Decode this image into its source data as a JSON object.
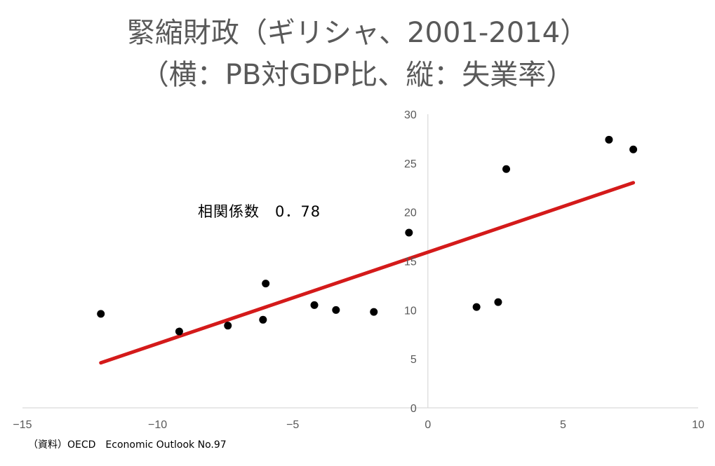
{
  "chart_data": {
    "type": "scatter",
    "title_line1": "緊縮財政（ギリシャ、2001-2014）",
    "title_line2": "（横：PB対GDP比、縦：失業率）",
    "xlabel": "",
    "ylabel": "",
    "xlim": [
      -15,
      10
    ],
    "ylim": [
      0,
      30
    ],
    "x_ticks": [
      -15,
      -10,
      -5,
      0,
      5,
      10
    ],
    "x_tick_labels": [
      "−15",
      "−10",
      "−5",
      "0",
      "5",
      "10"
    ],
    "y_ticks": [
      0,
      5,
      10,
      15,
      20,
      25,
      30
    ],
    "y_tick_labels": [
      "0",
      "5",
      "10",
      "15",
      "20",
      "25",
      "30"
    ],
    "grid": false,
    "points": [
      {
        "x": -12.1,
        "y": 9.6
      },
      {
        "x": -9.2,
        "y": 7.8
      },
      {
        "x": -7.4,
        "y": 8.4
      },
      {
        "x": -6.1,
        "y": 9.0
      },
      {
        "x": -6.0,
        "y": 12.7
      },
      {
        "x": -4.2,
        "y": 10.5
      },
      {
        "x": -3.4,
        "y": 10.0
      },
      {
        "x": -2.0,
        "y": 9.8
      },
      {
        "x": -0.7,
        "y": 17.9
      },
      {
        "x": 1.8,
        "y": 10.3
      },
      {
        "x": 2.6,
        "y": 10.8
      },
      {
        "x": 2.9,
        "y": 24.4
      },
      {
        "x": 6.7,
        "y": 27.4
      },
      {
        "x": 7.6,
        "y": 26.4
      }
    ],
    "trendline": {
      "x": [
        -12.1,
        7.6
      ],
      "y": [
        4.6,
        23.0
      ],
      "color": "#d41a1a"
    },
    "point_color": "#000000",
    "annotation": "相関係数　0．78",
    "source": "（資料）OECD　Economic Outlook No.97"
  }
}
